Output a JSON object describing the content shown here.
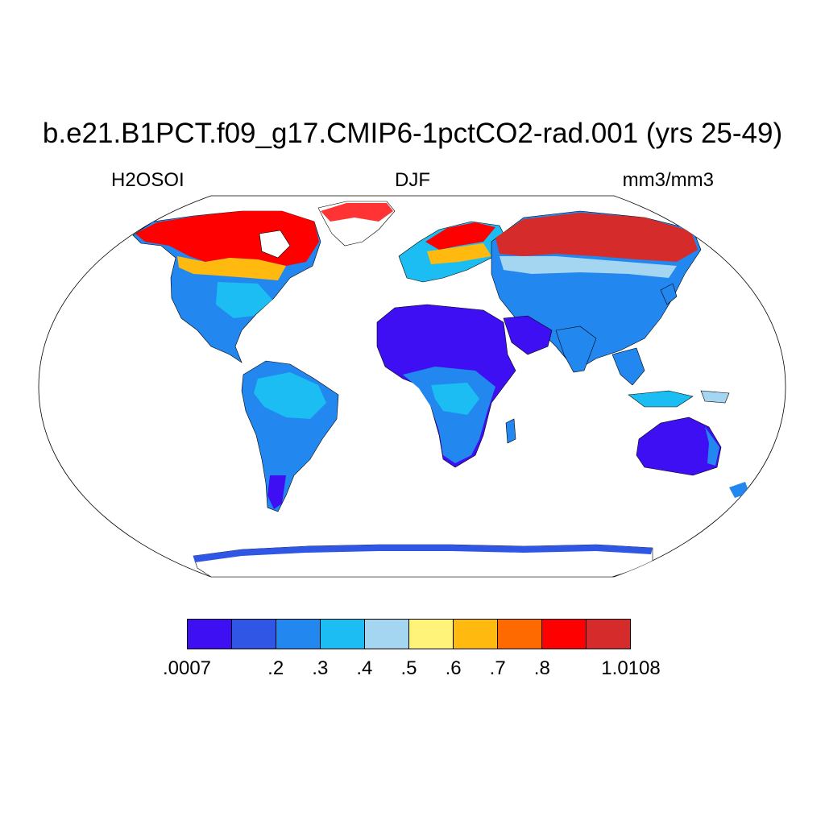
{
  "title": "b.e21.B1PCT.f09_g17.CMIP6-1pctCO2-rad.001 (yrs 25-49)",
  "subtitle": {
    "left": "H2OSOI",
    "center": "DJF",
    "right": "mm3/mm3"
  },
  "colorbar": {
    "colors": [
      "#3e0ff2",
      "#2f56e5",
      "#2288f0",
      "#1cbdf2",
      "#a5d6f1",
      "#fff37a",
      "#ffb90f",
      "#ff6a00",
      "#ff0000",
      "#d52b2b"
    ],
    "labels": [
      ".0007",
      ".2",
      ".3",
      ".4",
      ".5",
      ".6",
      ".7",
      ".8",
      "1.0108"
    ]
  },
  "map": {
    "projection": "Robinson",
    "field": "H2OSOI",
    "regions": [
      {
        "name": "Greenland",
        "level": "high"
      },
      {
        "name": "Northern Canada",
        "level": "high"
      },
      {
        "name": "Siberia",
        "level": "high"
      },
      {
        "name": "Scandinavia",
        "level": "high"
      },
      {
        "name": "Sahara",
        "level": "lowest"
      },
      {
        "name": "Arabian Peninsula",
        "level": "lowest"
      },
      {
        "name": "Australia",
        "level": "lowest"
      },
      {
        "name": "Amazon",
        "level": "medium"
      },
      {
        "name": "Eastern US",
        "level": "medium"
      },
      {
        "name": "Antarctica coast",
        "level": "low"
      }
    ]
  }
}
